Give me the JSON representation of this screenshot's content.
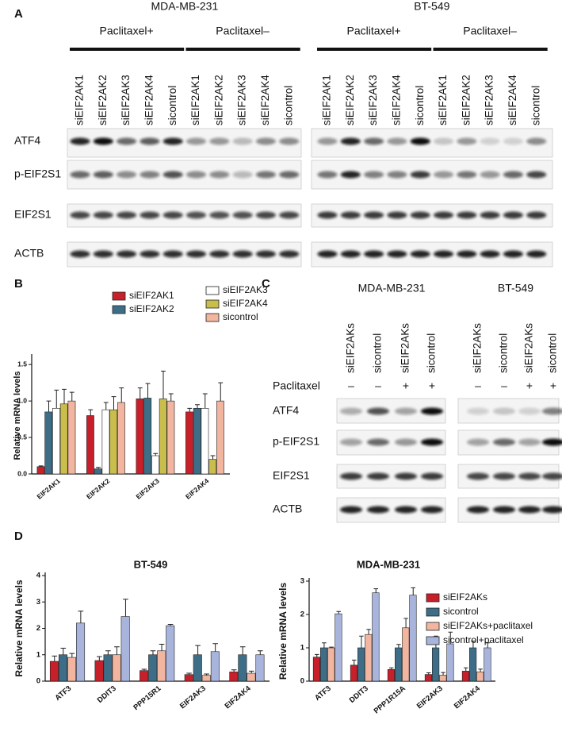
{
  "panel_a": {
    "label": "A",
    "cell_lines": [
      {
        "name": "MDA-MB-231",
        "groups": [
          {
            "label": "Paclitaxel+",
            "lanes": [
              "siEIF2AK1",
              "siEIF2AK2",
              "siEIF2AK3",
              "siEIF2AK4",
              "sicontrol"
            ]
          },
          {
            "label": "Paclitaxel–",
            "lanes": [
              "siEIF2AK1",
              "siEIF2AK2",
              "siEIF2AK3",
              "siEIF2AK4",
              "sicontrol"
            ]
          }
        ]
      },
      {
        "name": "BT-549",
        "groups": [
          {
            "label": "Paclitaxel+",
            "lanes": [
              "siEIF2AK1",
              "siEIF2AK2",
              "siEIF2AK3",
              "siEIF2AK4",
              "sicontrol"
            ]
          },
          {
            "label": "Paclitaxel–",
            "lanes": [
              "siEIF2AK1",
              "siEIF2AK2",
              "siEIF2AK3",
              "siEIF2AK4",
              "sicontrol"
            ]
          }
        ]
      }
    ],
    "rows": [
      "ATF4",
      "p-EIF2S1",
      "EIF2S1",
      "ACTB"
    ]
  },
  "panel_c": {
    "label": "C",
    "cell_lines": [
      {
        "name": "MDA-MB-231",
        "lanes": [
          "siEIF2AKs",
          "sicontrol",
          "siEIF2AKs",
          "sicontrol"
        ]
      },
      {
        "name": "BT-549",
        "lanes": [
          "siEIF2AKs",
          "sicontrol",
          "siEIF2AKs",
          "sicontrol"
        ]
      }
    ],
    "treatment": {
      "label": "Paclitaxel",
      "signs": [
        "–",
        "–",
        "+",
        "+"
      ]
    },
    "rows": [
      "ATF4",
      "p-EIF2S1",
      "EIF2S1",
      "ACTB"
    ]
  },
  "panel_d_label": "D",
  "chart_data": [
    {
      "type": "bar",
      "panel": "B",
      "ylabel": "Relative mRNA levels",
      "categories": [
        "EIF2AK1",
        "EIF2AK2",
        "EIF2AK3",
        "EIF2AK4"
      ],
      "ylim": [
        0,
        1.6
      ],
      "yticks": [
        {
          "value": 0,
          "label": "0.0"
        },
        {
          "value": 0.5,
          "label": "0.5"
        },
        {
          "value": 1,
          "label": "1.0"
        },
        {
          "value": 1.5,
          "label": "1.5"
        }
      ],
      "legend": true,
      "series": [
        {
          "name": "siEIF2AK1",
          "color": "#c8202a",
          "values": [
            0.1,
            0.8,
            1.03,
            0.85
          ],
          "errors": [
            0.01,
            0.08,
            0.15,
            0.05
          ]
        },
        {
          "name": "siEIF2AK2",
          "color": "#3e6e87",
          "values": [
            0.85,
            0.07,
            1.04,
            0.9
          ],
          "errors": [
            0.15,
            0.02,
            0.2,
            0.05
          ]
        },
        {
          "name": "siEIF2AK3",
          "color": "#ffffff",
          "values": [
            0.9,
            0.88,
            0.25,
            0.9
          ],
          "errors": [
            0.25,
            0.1,
            0.03,
            0.2
          ]
        },
        {
          "name": "siEIF2AK4",
          "color": "#c9bd4c",
          "values": [
            0.96,
            0.88,
            1.03,
            0.2
          ],
          "errors": [
            0.2,
            0.18,
            0.38,
            0.05
          ]
        },
        {
          "name": "sicontrol",
          "color": "#f1b5a0",
          "values": [
            1.0,
            0.98,
            1.0,
            1.0
          ],
          "errors": [
            0.12,
            0.2,
            0.1,
            0.25
          ]
        }
      ]
    },
    {
      "type": "bar",
      "title": "BT-549",
      "ylabel": "Relative mRNA levels",
      "categories": [
        "ATF3",
        "DDIT3",
        "PPP15R1",
        "EIF2AK3",
        "EIF2AK4"
      ],
      "ylim": [
        0,
        4
      ],
      "yticks": [
        0,
        1,
        2,
        3,
        4
      ],
      "legend": false,
      "series": [
        {
          "name": "siEIF2AKs",
          "color": "#c8202a",
          "values": [
            0.75,
            0.78,
            0.4,
            0.25,
            0.35
          ],
          "errors": [
            0.2,
            0.15,
            0.05,
            0.05,
            0.08
          ]
        },
        {
          "name": "sicontrol",
          "color": "#3e6e87",
          "values": [
            1.0,
            1.0,
            1.0,
            1.0,
            1.0
          ],
          "errors": [
            0.25,
            0.15,
            0.15,
            0.35,
            0.3
          ]
        },
        {
          "name": "siEIF2AKs+paclitaxel",
          "color": "#f1b5a0",
          "values": [
            0.9,
            1.0,
            1.15,
            0.22,
            0.3
          ],
          "errors": [
            0.15,
            0.3,
            0.25,
            0.05,
            0.08
          ]
        },
        {
          "name": "sicontrol+paclitaxel",
          "color": "#a8b4dc",
          "values": [
            2.2,
            2.45,
            2.1,
            1.12,
            1.0
          ],
          "errors": [
            0.45,
            0.65,
            0.05,
            0.3,
            0.15
          ]
        }
      ]
    },
    {
      "type": "bar",
      "title": "MDA-MB-231",
      "ylabel": "Relative mRNA levels",
      "categories": [
        "ATF3",
        "DDIT3",
        "PPP1R15A",
        "EIF2AK3",
        "EIF2AK4"
      ],
      "ylim": [
        0,
        3
      ],
      "yticks": [
        0,
        1,
        2,
        3
      ],
      "legend": true,
      "series": [
        {
          "name": "siEIF2AKs",
          "color": "#c8202a",
          "values": [
            0.72,
            0.48,
            0.35,
            0.2,
            0.3
          ],
          "errors": [
            0.08,
            0.15,
            0.05,
            0.05,
            0.1
          ]
        },
        {
          "name": "sicontrol",
          "color": "#3e6e87",
          "values": [
            1.0,
            1.0,
            1.0,
            1.0,
            1.0
          ],
          "errors": [
            0.15,
            0.35,
            0.1,
            0.35,
            0.2
          ]
        },
        {
          "name": "siEIF2AKs+paclitaxel",
          "color": "#f1b5a0",
          "values": [
            1.0,
            1.4,
            1.6,
            0.18,
            0.28
          ],
          "errors": [
            0.02,
            0.15,
            0.28,
            0.08,
            0.08
          ]
        },
        {
          "name": "sicontrol+paclitaxel",
          "color": "#a8b4dc",
          "values": [
            2.02,
            2.65,
            2.58,
            1.12,
            1.0
          ],
          "errors": [
            0.07,
            0.12,
            0.22,
            0.35,
            0.15
          ]
        }
      ]
    }
  ]
}
